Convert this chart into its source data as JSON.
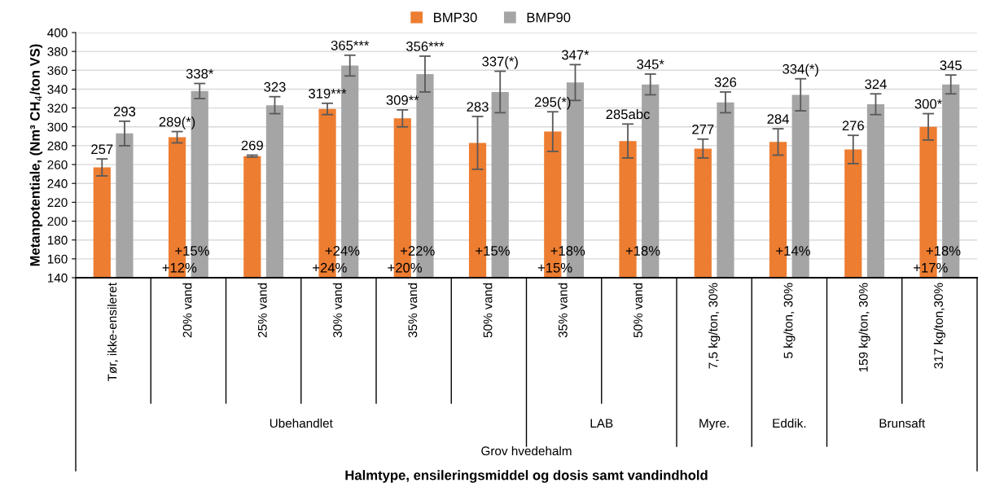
{
  "chart_data": {
    "type": "bar",
    "ylabel": "Metanpotentiale, (Nm³ CH$_{4}$/ton VS)",
    "categories": [
      "Tør, ikke-ensileret",
      "20% vand",
      "25% vand",
      "30% vand",
      "35% vand",
      "50% vand",
      "35% vand",
      "50% vand",
      "7,5 kg/ton, 30%",
      "5 kg/ton, 30%",
      "159 kg/ton, 30%",
      "317 kg/ton,30%"
    ],
    "series": [
      {
        "name": "BMP30",
        "color": "#ed7d31",
        "values": [
          257,
          289,
          269,
          319,
          309,
          283,
          295,
          285,
          277,
          284,
          276,
          300
        ],
        "errors": [
          9,
          6,
          1,
          6,
          9,
          28,
          21,
          18,
          10,
          14,
          15,
          14
        ],
        "value_labels": [
          "257",
          "289(*)",
          "269",
          "319***",
          "309**",
          "283",
          "295(*)",
          "285abc",
          "277",
          "284",
          "276",
          "300*"
        ]
      },
      {
        "name": "BMP90",
        "color": "#a5a5a5",
        "values": [
          293,
          338,
          323,
          365,
          356,
          337,
          347,
          345,
          326,
          334,
          324,
          345
        ],
        "errors": [
          13,
          8,
          9,
          11,
          19,
          22,
          19,
          11,
          11,
          17,
          11,
          10
        ],
        "value_labels": [
          "293",
          "338*",
          "323",
          "365***",
          "356***",
          "337(*)",
          "347*",
          "345*",
          "326",
          "334(*)",
          "324",
          "345"
        ]
      }
    ],
    "ylim": [
      140,
      400
    ],
    "yticks": [
      140,
      160,
      180,
      200,
      220,
      240,
      260,
      280,
      300,
      320,
      340,
      360,
      380,
      400
    ],
    "grid": "y",
    "legend": "top",
    "annotations": [
      "+12%",
      "+15%",
      "+24%",
      "+24%",
      "+20%",
      "+22%",
      "+15%",
      "+15%",
      "+18%",
      "+18%",
      "+14%",
      "+17%",
      "+18%",
      "Ubehandlet",
      "LAB",
      "Myre.",
      "Eddik.",
      "Brunsaft",
      "Grov hvedehalm",
      "Halmtype, ensileringsmiddel og dosis samt vandindhold"
    ]
  }
}
